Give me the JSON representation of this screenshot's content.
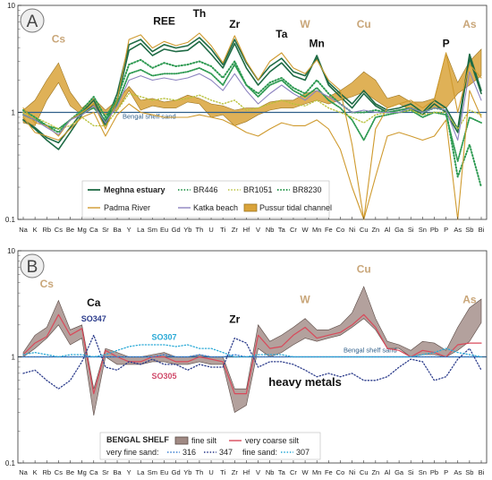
{
  "colors": {
    "meghna": "#1f6b45",
    "br_green": "#2e9a52",
    "br1051": "#b9c23c",
    "padma": "#cf9a2e",
    "katka": "#8d84c0",
    "pussur_fill": "#d9a33a",
    "pussur_edge": "#9c7520",
    "ref_line": "#2f5f8a",
    "fine_silt_fill": "#a08a84",
    "fine_silt_edge": "#5a4a45",
    "coarse_silt": "#d9495a",
    "s316": "#3a7fd0",
    "s347": "#2a3a8a",
    "s307": "#29a9d6",
    "tan_label": "#c9a679",
    "blue_label": "#2c3c8c",
    "cyan_label": "#29a9d6",
    "pink_label": "#d04a6a"
  },
  "chart_data": [
    {
      "type": "line",
      "panel_letter": "A",
      "y_scale": "log",
      "ylim": [
        0.1,
        10
      ],
      "yticks": [
        "0.1",
        "1",
        "10"
      ],
      "grid": false,
      "legend_position": "bottom-left",
      "categories": [
        "Na",
        "K",
        "Rb",
        "Cs",
        "Be",
        "Mg",
        "Ca",
        "Sr",
        "Ba",
        "Y",
        "La",
        "Sm",
        "Eu",
        "Gd",
        "Yb",
        "Th",
        "U",
        "Ti",
        "Zr",
        "Hf",
        "V",
        "Nb",
        "Ta",
        "Cr",
        "W",
        "Mn",
        "Fe",
        "Co",
        "Ni",
        "Cu",
        "Zn",
        "Al",
        "Ga",
        "Si",
        "Sn",
        "Pb",
        "P",
        "As",
        "Sb",
        "Bi"
      ],
      "reference_label": "Bengal shelf sand",
      "annotations": [
        {
          "text": "Cs",
          "category": "Cs",
          "y": 4.5,
          "color": "tan"
        },
        {
          "text": "REE",
          "category": "Eu",
          "y": 6.6,
          "color": "black"
        },
        {
          "text": "Th",
          "category": "Th",
          "y": 7.8,
          "color": "black"
        },
        {
          "text": "Zr",
          "category": "Zr",
          "y": 6.2,
          "color": "black"
        },
        {
          "text": "Ta",
          "category": "Ta",
          "y": 5.0,
          "color": "black"
        },
        {
          "text": "W",
          "category": "W",
          "y": 6.2,
          "color": "tan"
        },
        {
          "text": "Mn",
          "category": "Mn",
          "y": 4.1,
          "color": "black"
        },
        {
          "text": "Cu",
          "category": "Cu",
          "y": 6.2,
          "color": "tan"
        },
        {
          "text": "P",
          "category": "P",
          "y": 4.1,
          "color": "black"
        },
        {
          "text": "As",
          "category": "Sb",
          "y": 6.2,
          "color": "tan"
        }
      ],
      "bands": [
        {
          "name": "Pussur tidal channel",
          "lower": [
            0.8,
            0.75,
            1.3,
            1.9,
            1.15,
            0.95,
            1.1,
            0.95,
            1.05,
            1.6,
            1.05,
            1.15,
            1.1,
            1.1,
            1.25,
            1.2,
            0.9,
            0.95,
            0.75,
            0.82,
            0.95,
            1.05,
            1.1,
            1.1,
            1.2,
            1.3,
            1.2,
            1.3,
            1.4,
            1.55,
            1.3,
            1.1,
            1.2,
            1.05,
            1.0,
            1.1,
            1.1,
            1.5,
            1.8,
            2.2
          ],
          "upper": [
            1.05,
            1.3,
            2.0,
            2.9,
            1.55,
            1.1,
            1.35,
            1.05,
            1.3,
            1.75,
            1.3,
            1.35,
            1.25,
            1.3,
            1.45,
            1.35,
            1.2,
            1.15,
            1.05,
            1.1,
            1.1,
            1.25,
            1.3,
            1.3,
            1.5,
            1.6,
            1.4,
            1.6,
            1.9,
            2.4,
            2.0,
            1.35,
            1.45,
            1.25,
            1.25,
            1.35,
            3.6,
            1.9,
            3.0,
            3.9
          ]
        }
      ],
      "series": [
        {
          "name": "Meghna estuary",
          "style": "solid",
          "width": 1.6,
          "values": [
            0.85,
            0.72,
            0.58,
            0.52,
            0.72,
            1.0,
            1.3,
            0.8,
            1.5,
            4.3,
            4.8,
            3.7,
            4.3,
            4.0,
            4.2,
            5.0,
            3.9,
            2.8,
            4.8,
            2.9,
            2.0,
            2.7,
            3.2,
            2.4,
            2.2,
            3.2,
            1.9,
            1.5,
            1.2,
            1.6,
            1.2,
            1.05,
            1.1,
            1.2,
            1.0,
            1.3,
            1.1,
            0.7,
            3.5,
            1.6
          ]
        },
        {
          "name": "Meghna estuary",
          "style": "solid",
          "width": 1.6,
          "values": [
            0.85,
            0.7,
            0.55,
            0.45,
            0.65,
            0.95,
            1.2,
            0.75,
            1.3,
            3.8,
            4.4,
            3.4,
            3.9,
            3.7,
            3.8,
            4.6,
            3.5,
            2.6,
            4.4,
            2.6,
            1.8,
            2.4,
            2.9,
            2.2,
            2.0,
            3.4,
            1.8,
            1.4,
            1.1,
            1.5,
            1.15,
            1.0,
            1.05,
            1.1,
            0.95,
            1.2,
            1.0,
            0.65,
            3.2,
            1.5
          ]
        },
        {
          "name": "BR446",
          "style": "dotted-fine",
          "width": 1.8,
          "values": [
            0.95,
            0.85,
            0.75,
            0.7,
            0.85,
            1.0,
            1.1,
            0.85,
            1.2,
            2.3,
            2.5,
            2.2,
            2.3,
            2.3,
            2.4,
            2.6,
            2.3,
            1.8,
            2.8,
            1.8,
            1.4,
            1.8,
            2.0,
            1.6,
            1.4,
            1.7,
            1.3,
            1.1,
            0.85,
            0.55,
            0.9,
            0.95,
            1.0,
            1.05,
            0.9,
            1.0,
            0.95,
            0.35,
            0.9,
            0.8
          ]
        },
        {
          "name": "BR1051",
          "style": "dotted",
          "width": 1.4,
          "values": [
            1.0,
            0.9,
            0.8,
            0.7,
            0.75,
            0.9,
            0.75,
            0.75,
            1.05,
            1.5,
            1.4,
            1.3,
            1.35,
            1.3,
            1.35,
            1.45,
            1.3,
            1.2,
            1.3,
            1.05,
            1.1,
            1.2,
            1.3,
            1.2,
            1.15,
            1.3,
            1.1,
            1.0,
            0.9,
            0.8,
            0.95,
            1.0,
            1.0,
            1.05,
            0.95,
            1.0,
            1.0,
            0.7,
            1.05,
            0.95
          ]
        },
        {
          "name": "BR8230",
          "style": "dotted",
          "width": 2.0,
          "values": [
            1.05,
            0.9,
            0.75,
            0.65,
            0.85,
            1.05,
            1.4,
            0.9,
            1.35,
            2.8,
            3.1,
            2.6,
            2.9,
            2.7,
            2.8,
            3.0,
            2.7,
            2.1,
            3.0,
            1.8,
            1.5,
            1.9,
            2.1,
            1.7,
            1.5,
            2.0,
            1.5,
            1.2,
            1.0,
            1.0,
            1.05,
            1.0,
            1.05,
            1.1,
            1.0,
            1.1,
            1.05,
            0.25,
            0.5,
            0.2
          ]
        },
        {
          "name": "Padma River",
          "style": "solid",
          "width": 1.1,
          "values": [
            0.9,
            0.65,
            0.6,
            0.55,
            0.7,
            0.9,
            1.0,
            0.6,
            0.95,
            1.2,
            1.0,
            0.95,
            0.9,
            0.9,
            0.9,
            0.95,
            0.9,
            0.85,
            0.75,
            0.65,
            0.6,
            0.7,
            0.8,
            0.75,
            0.75,
            0.85,
            0.7,
            0.45,
            0.2,
            0.1,
            0.25,
            0.6,
            0.65,
            0.6,
            0.55,
            0.6,
            0.85,
            0.1,
            1.6,
            0.9
          ]
        },
        {
          "name": "Padma River",
          "style": "solid",
          "width": 1.1,
          "values": [
            1.1,
            0.8,
            0.75,
            0.6,
            0.85,
            1.0,
            1.2,
            0.7,
            1.3,
            4.8,
            5.3,
            4.0,
            4.6,
            4.2,
            4.5,
            5.5,
            4.2,
            2.9,
            5.2,
            3.0,
            2.0,
            3.0,
            3.6,
            2.6,
            2.3,
            3.1,
            2.0,
            1.6,
            0.5,
            0.1,
            0.7,
            1.1,
            1.2,
            1.3,
            1.1,
            1.3,
            3.6,
            1.0,
            2.8,
            2.1
          ]
        },
        {
          "name": "Katka beach",
          "style": "solid",
          "width": 1.1,
          "values": [
            0.95,
            0.85,
            0.72,
            0.62,
            0.85,
            0.95,
            1.15,
            0.8,
            1.15,
            2.0,
            2.2,
            2.0,
            2.1,
            2.0,
            2.1,
            2.3,
            2.0,
            1.6,
            2.3,
            1.6,
            1.2,
            1.5,
            1.8,
            1.5,
            1.3,
            1.6,
            1.4,
            1.2,
            1.0,
            1.05,
            1.0,
            1.0,
            1.0,
            1.1,
            1.0,
            1.1,
            1.05,
            0.55,
            2.4,
            1.3
          ]
        }
      ]
    },
    {
      "type": "line",
      "panel_letter": "B",
      "y_scale": "log",
      "ylim": [
        0.1,
        10
      ],
      "yticks": [
        "0.1",
        "1",
        "10"
      ],
      "grid": false,
      "legend_position": "bottom-center",
      "legend_title": "BENGAL SHELF",
      "legend_row2_labels": [
        "very fine sand:",
        "fine sand:"
      ],
      "categories": [
        "Na",
        "K",
        "Rb",
        "Cs",
        "Be",
        "Mg",
        "Ca",
        "Sr",
        "Ba",
        "Y",
        "La",
        "Sm",
        "Eu",
        "Gd",
        "Yb",
        "Th",
        "U",
        "Ti",
        "Zr",
        "Hf",
        "V",
        "Nb",
        "Ta",
        "Cr",
        "W",
        "Mn",
        "Fe",
        "Co",
        "Ni",
        "Cu",
        "Zn",
        "Al",
        "Ga",
        "Si",
        "Sn",
        "Pb",
        "P",
        "As",
        "Sb",
        "Bi"
      ],
      "reference_label": "Bengal shelf sand",
      "annotations": [
        {
          "text": "Cs",
          "category": "Rb",
          "y": 4.5,
          "color": "tan"
        },
        {
          "text": "Ca",
          "category": "Ca",
          "y": 3.0,
          "color": "black"
        },
        {
          "text": "SO347",
          "category": "Ca",
          "y": 2.15,
          "color": "blue",
          "small": true
        },
        {
          "text": "SO307",
          "category": "Eu",
          "y": 1.45,
          "color": "cyan",
          "small": true
        },
        {
          "text": "SO305",
          "category": "Eu",
          "y": 0.62,
          "color": "pink",
          "small": true
        },
        {
          "text": "Zr",
          "category": "Zr",
          "y": 2.1,
          "color": "black"
        },
        {
          "text": "W",
          "category": "W",
          "y": 3.2,
          "color": "tan"
        },
        {
          "text": "Cu",
          "category": "Cu",
          "y": 6.2,
          "color": "tan"
        },
        {
          "text": "As",
          "category": "Sb",
          "y": 3.2,
          "color": "tan"
        },
        {
          "text": "heavy metals",
          "category": "W",
          "y": 0.53,
          "color": "black",
          "big": true
        }
      ],
      "bands": [
        {
          "name": "fine silt",
          "lower": [
            1.0,
            1.2,
            1.5,
            2.0,
            1.3,
            1.5,
            0.28,
            1.0,
            0.85,
            0.85,
            0.85,
            0.9,
            0.9,
            0.85,
            0.85,
            0.9,
            0.85,
            0.85,
            0.3,
            0.35,
            1.2,
            1.0,
            1.1,
            1.3,
            1.5,
            1.4,
            1.5,
            1.6,
            1.9,
            2.3,
            1.8,
            1.2,
            1.2,
            1.0,
            1.05,
            1.05,
            1.0,
            1.15,
            1.4,
            2.1
          ],
          "upper": [
            1.1,
            1.6,
            1.9,
            3.4,
            1.8,
            2.0,
            0.5,
            1.2,
            1.1,
            1.0,
            1.0,
            1.05,
            1.1,
            1.0,
            1.0,
            1.05,
            1.0,
            1.0,
            0.5,
            0.5,
            2.0,
            1.4,
            1.6,
            1.9,
            2.3,
            1.8,
            1.8,
            2.0,
            2.6,
            4.6,
            2.3,
            1.4,
            1.3,
            1.15,
            1.4,
            1.35,
            1.15,
            1.9,
            2.9,
            3.5
          ]
        }
      ],
      "series": [
        {
          "name": "very coarse silt",
          "style": "solid",
          "width": 1.2,
          "color": "coarse_silt",
          "values": [
            1.05,
            1.35,
            1.55,
            2.5,
            1.6,
            1.85,
            0.45,
            1.15,
            1.0,
            0.9,
            0.9,
            1.0,
            1.0,
            0.9,
            0.9,
            1.0,
            0.95,
            0.9,
            0.45,
            0.45,
            1.6,
            1.2,
            1.25,
            1.6,
            1.9,
            1.5,
            1.6,
            1.7,
            2.0,
            2.5,
            1.9,
            1.2,
            1.15,
            1.0,
            1.15,
            1.1,
            1.0,
            1.3,
            1.35,
            1.35
          ]
        },
        {
          "name": "316",
          "style": "dotted",
          "width": 1.3,
          "color": "s316",
          "values": [
            1.0,
            1.0,
            1.0,
            1.0,
            1.0,
            1.0,
            1.0,
            1.0,
            1.0,
            1.0,
            1.0,
            1.0,
            1.05,
            1.0,
            1.0,
            1.05,
            1.0,
            1.0,
            1.05,
            1.0,
            1.0,
            1.0,
            1.0,
            1.0,
            1.0,
            1.0,
            1.0,
            1.0,
            1.0,
            1.0,
            1.0,
            1.0,
            1.0,
            1.0,
            1.0,
            1.0,
            1.0,
            1.0,
            1.0,
            1.0
          ]
        },
        {
          "name": "347",
          "style": "dotted",
          "width": 1.3,
          "color": "s347",
          "values": [
            0.7,
            0.75,
            0.6,
            0.5,
            0.6,
            0.9,
            1.6,
            0.8,
            0.75,
            0.9,
            0.85,
            0.95,
            0.85,
            0.85,
            0.75,
            0.85,
            0.8,
            0.8,
            1.5,
            1.35,
            0.8,
            0.9,
            0.9,
            0.85,
            0.75,
            0.65,
            0.7,
            0.65,
            0.7,
            0.6,
            0.6,
            0.65,
            0.8,
            0.95,
            0.9,
            0.6,
            0.65,
            0.95,
            1.2,
            0.75
          ]
        },
        {
          "name": "307",
          "style": "dotted",
          "width": 1.3,
          "color": "s307",
          "values": [
            1.05,
            1.1,
            1.05,
            1.0,
            1.05,
            1.05,
            1.0,
            1.05,
            1.15,
            1.25,
            1.3,
            1.3,
            1.3,
            1.25,
            1.3,
            1.2,
            1.2,
            1.1,
            1.0,
            1.0,
            1.05,
            1.05,
            1.05,
            1.0,
            1.0,
            1.0,
            1.0,
            1.0,
            1.0,
            1.0,
            1.0,
            1.0,
            1.0,
            1.0,
            1.05,
            1.1,
            1.2,
            1.1,
            1.05,
            1.0
          ]
        }
      ]
    }
  ]
}
